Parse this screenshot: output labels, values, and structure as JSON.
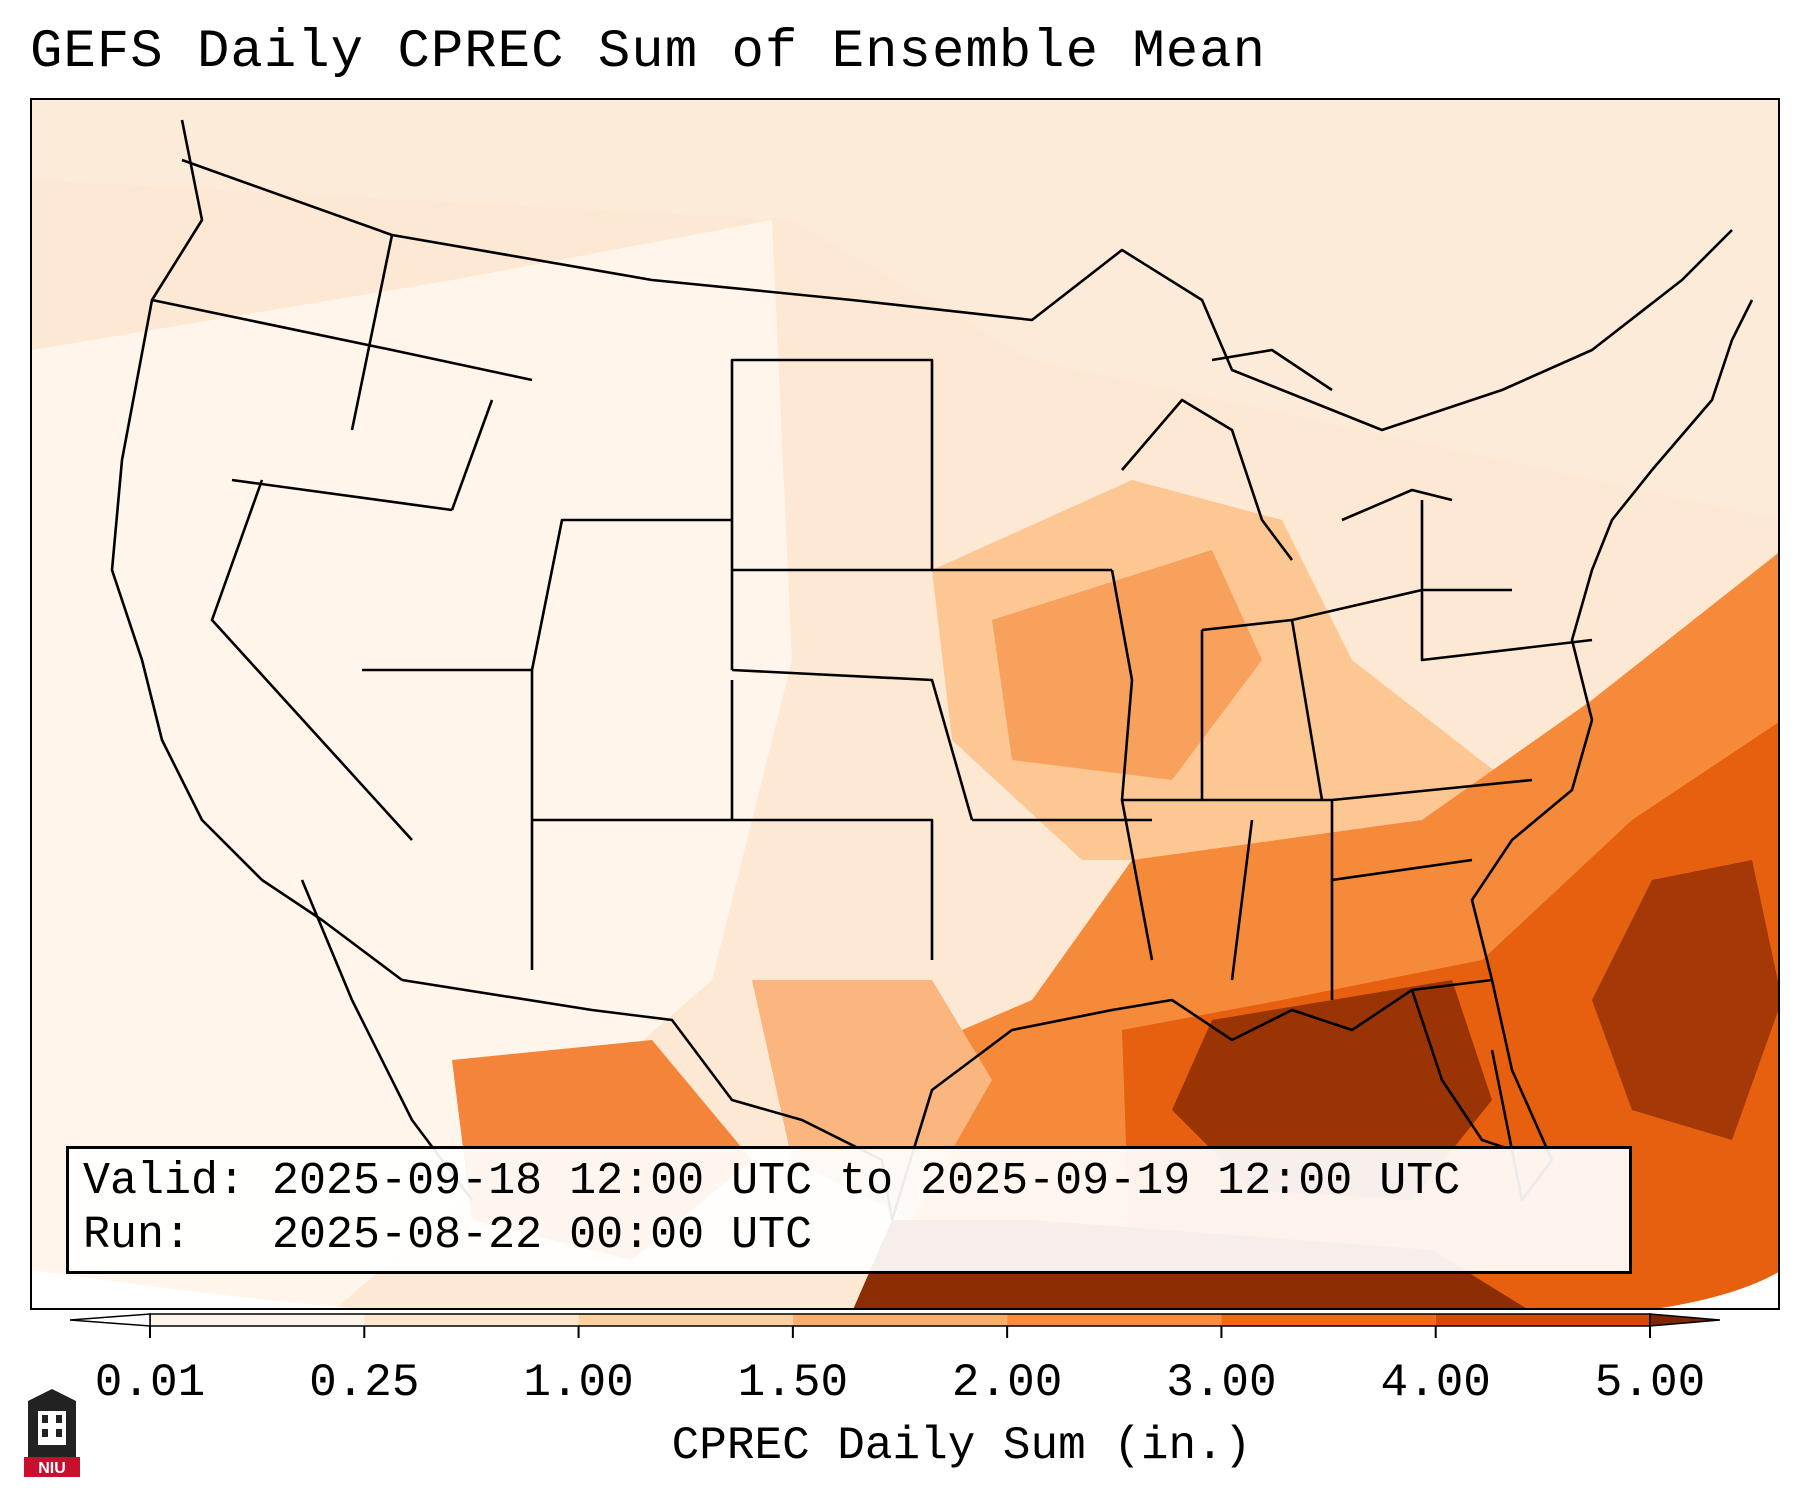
{
  "title": "GEFS Daily CPREC Sum of Ensemble Mean",
  "info": {
    "valid_label": "Valid:",
    "valid_value": "2025-09-18 12:00 UTC to 2025-09-19 12:00 UTC",
    "run_label": "Run:",
    "run_value": "2025-08-22 00:00 UTC"
  },
  "colorbar": {
    "label": "CPREC Daily Sum (in.)",
    "ticks": [
      "0.01",
      "0.25",
      "1.00",
      "1.50",
      "2.00",
      "3.00",
      "4.00",
      "5.00"
    ],
    "colors": [
      "#fff5eb",
      "#fee6ce",
      "#fdd0a2",
      "#fdae6b",
      "#fd8d3c",
      "#f16913",
      "#d94801",
      "#8c2d04"
    ],
    "under_color": "#ffffff",
    "over_color": "#7f2704"
  },
  "logo": {
    "text": "NIU",
    "color": "#c8102e"
  },
  "map": {
    "region": "Continental United States",
    "ocean_color": "#fdf2e6",
    "outline_color": "#000000"
  }
}
